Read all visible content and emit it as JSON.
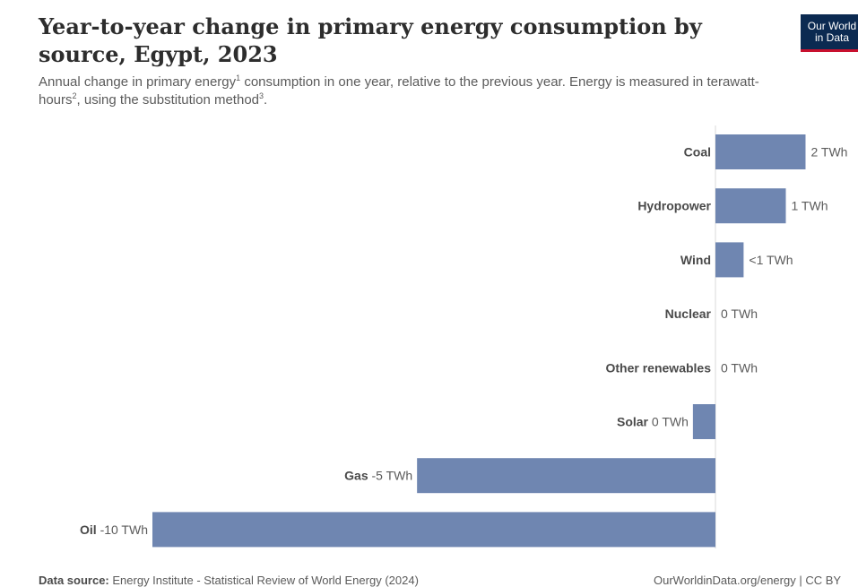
{
  "header": {
    "title": "Year-to-year change in primary energy consumption by source, Egypt, 2023",
    "subtitle_part1": "Annual change in primary energy",
    "sup1": "1",
    "subtitle_part2": " consumption in one year, relative to the previous year. Energy is measured in terawatt-hours",
    "sup2": "2",
    "subtitle_part3": ", using the substitution method",
    "sup3": "3",
    "subtitle_part4": "."
  },
  "logo": {
    "line1": "Our World",
    "line2": "in Data"
  },
  "footer": {
    "source_label": "Data source:",
    "source_text": "Energy Institute - Statistical Review of World Energy (2024)",
    "right_text": "OurWorldinData.org/energy | CC BY"
  },
  "colors": {
    "bar": "#6f86b1",
    "axis": "#d9d9d9"
  },
  "chart_data": {
    "type": "bar",
    "orientation": "horizontal",
    "unit": "TWh",
    "xlim": [
      -10.2,
      1.65
    ],
    "categories": [
      "Coal",
      "Hydropower",
      "Wind",
      "Nuclear",
      "Other renewables",
      "Solar",
      "Gas",
      "Oil"
    ],
    "values": [
      1.6,
      1.25,
      0.5,
      0,
      0,
      -0.4,
      -5.3,
      -10
    ],
    "value_labels": [
      "2 TWh",
      "1 TWh",
      "<1 TWh",
      "0 TWh",
      "0 TWh",
      "0 TWh",
      "-5 TWh",
      "-10 TWh"
    ]
  }
}
